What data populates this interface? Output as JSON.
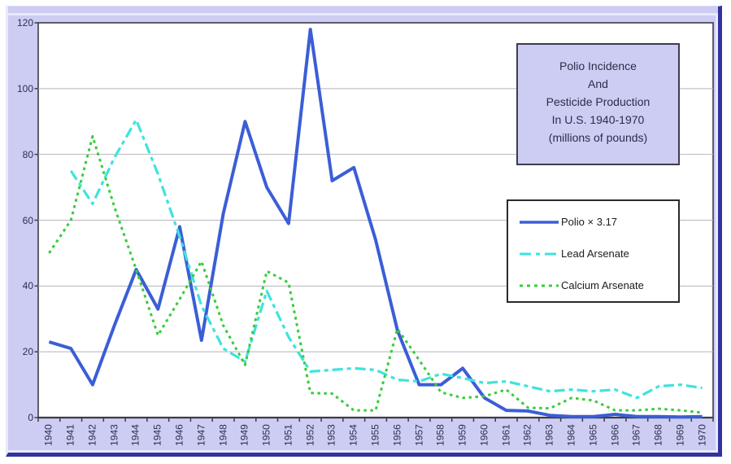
{
  "chart_data": {
    "type": "line",
    "title_lines": [
      "Polio Incidence",
      "And",
      "Pesticide Production",
      "In U.S. 1940-1970",
      "(millions of pounds)"
    ],
    "categories": [
      "1940",
      "1941",
      "1942",
      "1943",
      "1944",
      "1945",
      "1946",
      "1947",
      "1948",
      "1949",
      "1950",
      "1951",
      "1952",
      "1953",
      "1954",
      "1955",
      "1956",
      "1957",
      "1958",
      "1959",
      "1960",
      "1961",
      "1962",
      "1963",
      "1964",
      "1965",
      "1966",
      "1967",
      "1968",
      "1969",
      "1970"
    ],
    "xlabel": "",
    "ylabel": "",
    "ylim": [
      0,
      120
    ],
    "y_ticks": [
      0,
      20,
      40,
      60,
      80,
      100,
      120
    ],
    "grid": "horizontal",
    "legend_position": "right-middle",
    "x_label_rotation": -90,
    "series": [
      {
        "name": "polio",
        "label": "Polio × 3.17",
        "color": "#3b5ed6",
        "style": "solid",
        "width": 4,
        "values": [
          23,
          21,
          10,
          28,
          45,
          33,
          58,
          23.5,
          62,
          90,
          70,
          59,
          118,
          72,
          76,
          54,
          26.5,
          10,
          10,
          15,
          6,
          2.2,
          2,
          0.7,
          0.3,
          0.3,
          1,
          0.3,
          0.3,
          0.2,
          0.3
        ]
      },
      {
        "name": "lead-arsenate",
        "label": "Lead Arsenate",
        "color": "#3fe3de",
        "style": "dash-dot",
        "width": 3.2,
        "values": [
          null,
          75,
          65,
          79,
          90.5,
          74,
          55,
          34,
          21,
          17,
          38.5,
          24.5,
          14,
          14.5,
          15,
          14.5,
          11.5,
          11,
          13.3,
          12,
          10.5,
          11,
          9.5,
          8,
          8.5,
          8,
          8.5,
          6,
          9.5,
          10,
          9
        ]
      },
      {
        "name": "calcium-arsenate",
        "label": "Calcium Arsenate",
        "color": "#37cd3c",
        "style": "dotted",
        "width": 3,
        "values": [
          50,
          60,
          85.5,
          64,
          45,
          25,
          36,
          47.5,
          28,
          16,
          44.5,
          41,
          7.5,
          7.3,
          2.2,
          2.2,
          27,
          17.5,
          7.7,
          6,
          6.5,
          8.5,
          3,
          2.8,
          6,
          5.2,
          2.2,
          2.2,
          2.7,
          2.2,
          1.5
        ]
      }
    ]
  },
  "colors": {
    "background": "#cdccf2",
    "plot_background": "#ffffff",
    "gridline": "#b4b4bc",
    "axis": "#3c3c46",
    "frame": "#3232a0",
    "edge_light": "#e9e9fc",
    "tick_text": "#2e2e4e"
  }
}
